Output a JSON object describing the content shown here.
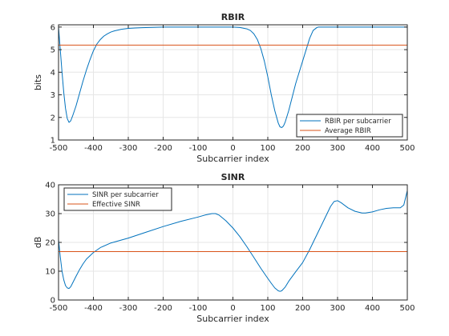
{
  "chart_data": [
    {
      "type": "line",
      "title": "RBIR",
      "xlabel": "Subcarrier index",
      "ylabel": "bits",
      "xlim": [
        -500,
        500
      ],
      "ylim": [
        1,
        6.1
      ],
      "xticks": [
        -500,
        -400,
        -300,
        -200,
        -100,
        0,
        100,
        200,
        300,
        400,
        500
      ],
      "yticks": [
        1,
        2,
        3,
        4,
        5,
        6
      ],
      "grid": true,
      "legend_position": "bottom-right",
      "series": [
        {
          "name": "RBIR per subcarrier",
          "color": "#0072bd",
          "x": [
            -500,
            -495,
            -490,
            -485,
            -480,
            -475,
            -470,
            -465,
            -460,
            -450,
            -440,
            -430,
            -420,
            -410,
            -400,
            -390,
            -380,
            -370,
            -360,
            -350,
            -340,
            -320,
            -300,
            -280,
            -260,
            -240,
            -220,
            -200,
            -100,
            0,
            20,
            40,
            50,
            60,
            70,
            80,
            90,
            100,
            110,
            120,
            130,
            135,
            140,
            145,
            150,
            160,
            170,
            180,
            190,
            200,
            210,
            220,
            230,
            240,
            245,
            250,
            260,
            280,
            300,
            400,
            500
          ],
          "y": [
            6.0,
            5.0,
            4.0,
            3.1,
            2.4,
            1.95,
            1.78,
            1.85,
            2.05,
            2.5,
            3.05,
            3.6,
            4.1,
            4.55,
            4.95,
            5.25,
            5.45,
            5.6,
            5.7,
            5.78,
            5.83,
            5.9,
            5.94,
            5.96,
            5.97,
            5.98,
            5.99,
            6.0,
            6.0,
            6.0,
            5.98,
            5.92,
            5.85,
            5.7,
            5.45,
            5.05,
            4.5,
            3.8,
            3.0,
            2.3,
            1.75,
            1.58,
            1.55,
            1.62,
            1.8,
            2.3,
            2.9,
            3.5,
            4.0,
            4.5,
            5.0,
            5.5,
            5.85,
            5.97,
            6.0,
            6.0,
            6.0,
            6.0,
            6.0,
            6.0,
            6.0
          ]
        },
        {
          "name": "Average RBIR",
          "color": "#d95319",
          "x": [
            -500,
            500
          ],
          "y": [
            5.2,
            5.2
          ]
        }
      ]
    },
    {
      "type": "line",
      "title": "SINR",
      "xlabel": "Subcarrier index",
      "ylabel": "dB",
      "xlim": [
        -500,
        500
      ],
      "ylim": [
        0,
        40
      ],
      "xticks": [
        -500,
        -400,
        -300,
        -200,
        -100,
        0,
        100,
        200,
        300,
        400,
        500
      ],
      "yticks": [
        0,
        10,
        20,
        30,
        40
      ],
      "grid": true,
      "legend_position": "top-left",
      "series": [
        {
          "name": "SINR per subcarrier",
          "color": "#0072bd",
          "x": [
            -500,
            -495,
            -490,
            -485,
            -480,
            -475,
            -470,
            -465,
            -460,
            -450,
            -440,
            -430,
            -420,
            -400,
            -380,
            -350,
            -300,
            -250,
            -200,
            -150,
            -100,
            -80,
            -60,
            -50,
            -40,
            -20,
            0,
            20,
            40,
            60,
            80,
            100,
            110,
            120,
            130,
            135,
            140,
            150,
            160,
            180,
            200,
            220,
            240,
            260,
            280,
            290,
            300,
            310,
            330,
            350,
            370,
            380,
            400,
            420,
            440,
            460,
            480,
            490,
            495,
            500
          ],
          "y": [
            21,
            15,
            10,
            7,
            5,
            4.2,
            4.0,
            4.6,
            5.8,
            8.2,
            10.5,
            12.5,
            14.2,
            16.5,
            18.2,
            19.8,
            21.5,
            23.5,
            25.5,
            27.3,
            28.8,
            29.5,
            30.0,
            30.0,
            29.5,
            27.5,
            25.0,
            22.0,
            18.5,
            14.8,
            11.0,
            7.5,
            5.8,
            4.2,
            3.2,
            3.0,
            3.2,
            4.5,
            6.5,
            9.8,
            13.0,
            17.5,
            22.5,
            27.5,
            32.5,
            34.2,
            34.5,
            33.8,
            32.0,
            30.8,
            30.2,
            30.2,
            30.6,
            31.3,
            31.8,
            32.0,
            32.0,
            33.0,
            35.5,
            38.0
          ]
        },
        {
          "name": "Effective SINR",
          "color": "#d95319",
          "x": [
            -500,
            500
          ],
          "y": [
            16.8,
            16.8
          ]
        }
      ]
    }
  ]
}
